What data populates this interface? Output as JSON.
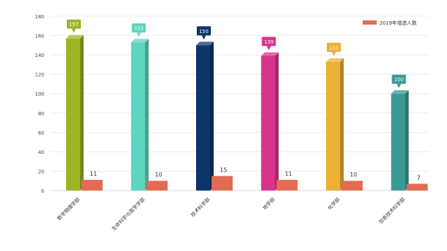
{
  "chart_data": {
    "type": "bar",
    "categories": [
      "数学物理学部",
      "生命科学与医学学部",
      "技术科学部",
      "地学部",
      "化学部",
      "信息技术科学部"
    ],
    "series": [
      {
        "name": "",
        "values": [
          157,
          153,
          150,
          139,
          133,
          100
        ],
        "colors": [
          "#9cb526",
          "#5fd3bf",
          "#0f3468",
          "#d7358c",
          "#ecb037",
          "#3a9a92"
        ]
      },
      {
        "name": "2019年增选人数",
        "values": [
          11,
          10,
          15,
          11,
          10,
          7
        ],
        "color": "#e26b51"
      }
    ],
    "ylim": [
      0,
      180
    ],
    "yticks": [
      0,
      20,
      40,
      60,
      80,
      100,
      120,
      140,
      160,
      180
    ],
    "grid": true,
    "legend_position": "top-right",
    "title": "",
    "xlabel": "",
    "ylabel": ""
  }
}
